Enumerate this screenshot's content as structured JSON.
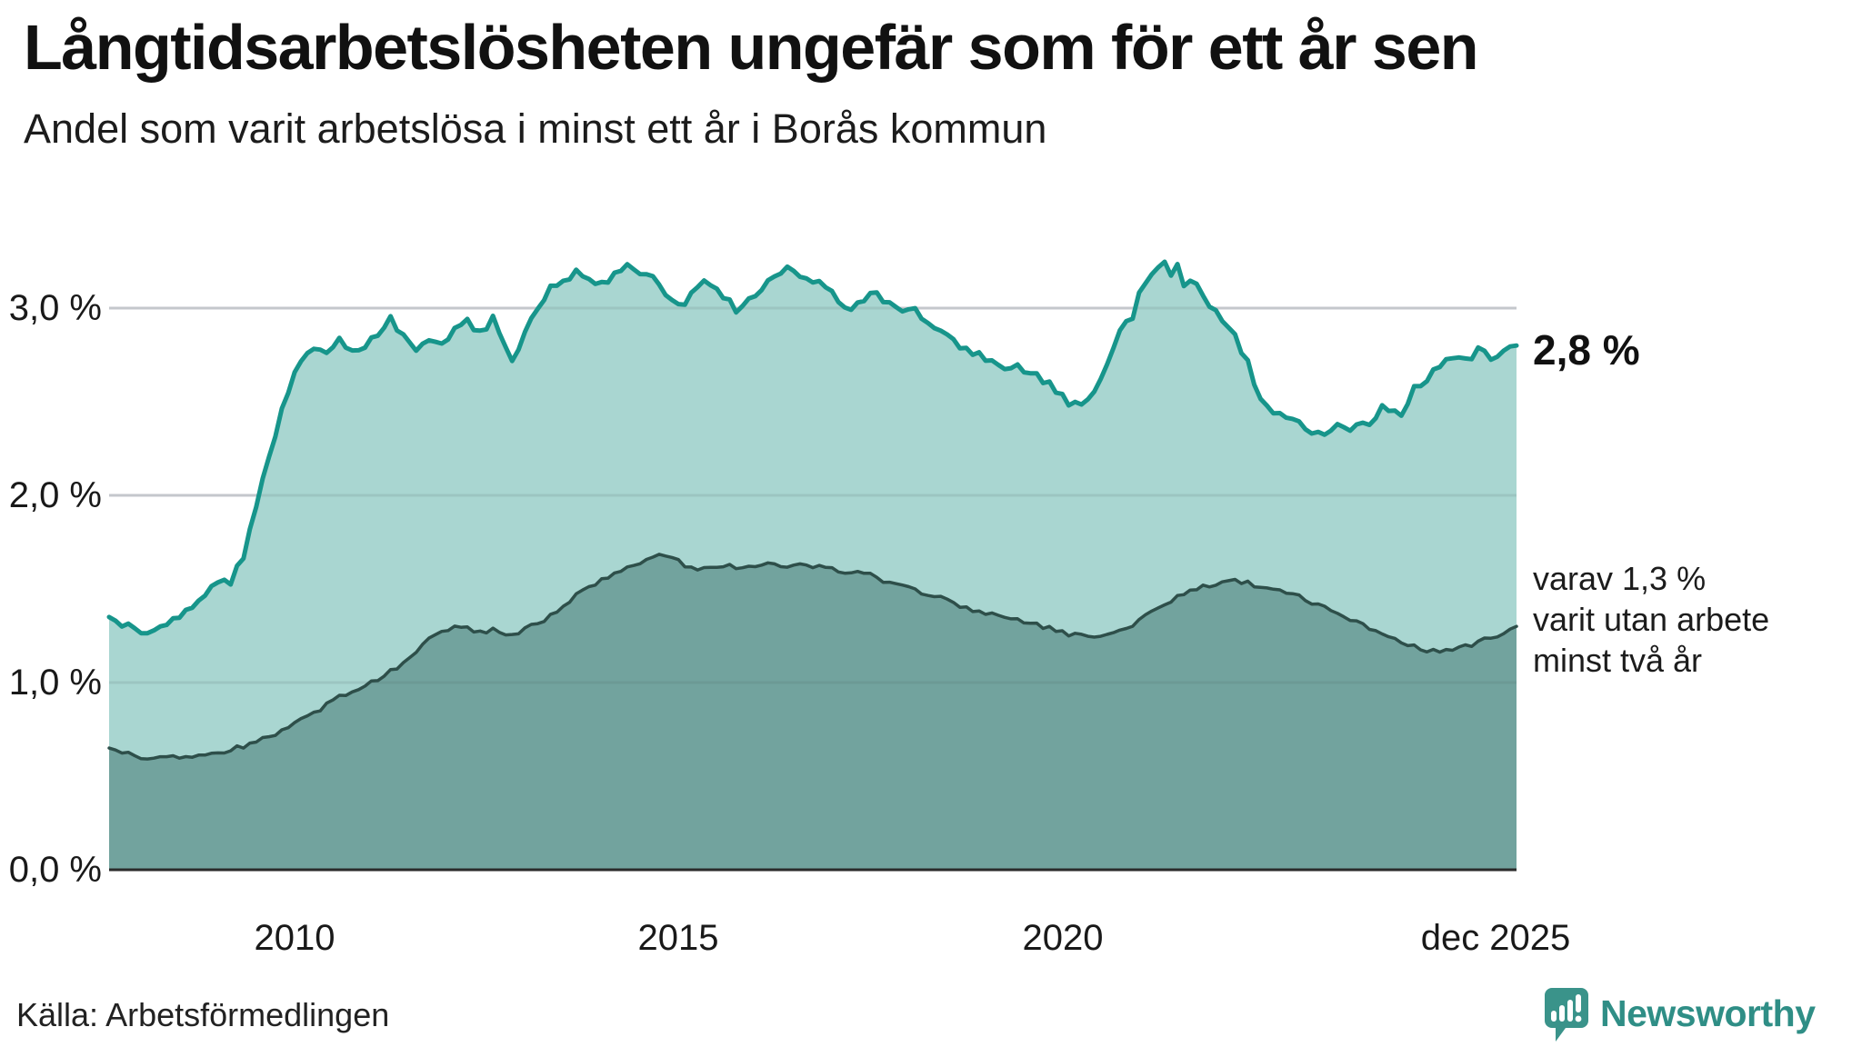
{
  "header": {
    "title": "Långtidsarbetslösheten ungefär som för ett år sen",
    "subtitle": "Andel som varit arbetslösa i minst ett år i Borås kommun"
  },
  "footer": {
    "source": "Källa: Arbetsförmedlingen",
    "brand": "Newsworthy"
  },
  "colors": {
    "primary_line": "#17958b",
    "primary_fill": "#a9d6d1",
    "secondary_line": "#2e4f4a",
    "secondary_fill": "#72a39e",
    "gridline": "#d8d8de",
    "axis": "#2b2b2b",
    "brand_teal": "#2f8e86"
  },
  "chart_data": {
    "type": "area",
    "title": "Långtidsarbetslösheten ungefär som för ett år sen",
    "subtitle": "Andel som varit arbetslösa i minst ett år i Borås kommun",
    "unit": "%",
    "grid": true,
    "x_range": [
      2007.58,
      2025.92
    ],
    "ylim": [
      0,
      3.45
    ],
    "y_ticks": [
      {
        "v": 0,
        "label": "0,0 %"
      },
      {
        "v": 1,
        "label": "1,0 %"
      },
      {
        "v": 2,
        "label": "2,0 %"
      },
      {
        "v": 3,
        "label": "3,0 %"
      }
    ],
    "x_ticks": [
      {
        "t": 2010.0,
        "label": "2010"
      },
      {
        "t": 2015.0,
        "label": "2015"
      },
      {
        "t": 2020.0,
        "label": "2020"
      },
      {
        "t": 2025.92,
        "label": "dec 2025"
      }
    ],
    "annotations": {
      "latest_value_label": "2,8 %",
      "secondary_lines": [
        "varav 1,3 %",
        "varit utan arbete",
        "minst två år"
      ]
    },
    "series": [
      {
        "name": "Andel arbetslösa minst ett år",
        "end_value": 2.8,
        "points": [
          [
            2007.58,
            1.35
          ],
          [
            2007.75,
            1.31
          ],
          [
            2007.92,
            1.29
          ],
          [
            2008.08,
            1.26
          ],
          [
            2008.25,
            1.3
          ],
          [
            2008.42,
            1.34
          ],
          [
            2008.58,
            1.38
          ],
          [
            2008.75,
            1.44
          ],
          [
            2008.92,
            1.52
          ],
          [
            2009.08,
            1.56
          ],
          [
            2009.17,
            1.53
          ],
          [
            2009.33,
            1.68
          ],
          [
            2009.5,
            1.95
          ],
          [
            2009.67,
            2.22
          ],
          [
            2009.83,
            2.45
          ],
          [
            2010.0,
            2.65
          ],
          [
            2010.17,
            2.76
          ],
          [
            2010.33,
            2.8
          ],
          [
            2010.42,
            2.74
          ],
          [
            2010.58,
            2.82
          ],
          [
            2010.75,
            2.78
          ],
          [
            2010.92,
            2.8
          ],
          [
            2011.08,
            2.87
          ],
          [
            2011.25,
            2.94
          ],
          [
            2011.42,
            2.86
          ],
          [
            2011.58,
            2.79
          ],
          [
            2011.75,
            2.85
          ],
          [
            2011.92,
            2.82
          ],
          [
            2012.08,
            2.89
          ],
          [
            2012.25,
            2.93
          ],
          [
            2012.42,
            2.87
          ],
          [
            2012.58,
            2.94
          ],
          [
            2012.75,
            2.8
          ],
          [
            2012.83,
            2.73
          ],
          [
            2013.0,
            2.86
          ],
          [
            2013.17,
            3.0
          ],
          [
            2013.33,
            3.1
          ],
          [
            2013.5,
            3.15
          ],
          [
            2013.67,
            3.2
          ],
          [
            2013.83,
            3.16
          ],
          [
            2014.0,
            3.13
          ],
          [
            2014.17,
            3.19
          ],
          [
            2014.33,
            3.23
          ],
          [
            2014.5,
            3.2
          ],
          [
            2014.67,
            3.17
          ],
          [
            2014.83,
            3.06
          ],
          [
            2015.0,
            3.0
          ],
          [
            2015.17,
            3.08
          ],
          [
            2015.33,
            3.14
          ],
          [
            2015.5,
            3.12
          ],
          [
            2015.75,
            2.98
          ],
          [
            2015.92,
            3.05
          ],
          [
            2016.08,
            3.1
          ],
          [
            2016.25,
            3.18
          ],
          [
            2016.42,
            3.23
          ],
          [
            2016.58,
            3.16
          ],
          [
            2016.75,
            3.13
          ],
          [
            2016.92,
            3.12
          ],
          [
            2017.08,
            3.05
          ],
          [
            2017.25,
            2.98
          ],
          [
            2017.42,
            3.05
          ],
          [
            2017.58,
            3.08
          ],
          [
            2017.75,
            3.02
          ],
          [
            2017.92,
            2.98
          ],
          [
            2018.08,
            3.0
          ],
          [
            2018.25,
            2.93
          ],
          [
            2018.42,
            2.86
          ],
          [
            2018.58,
            2.82
          ],
          [
            2018.75,
            2.78
          ],
          [
            2018.92,
            2.76
          ],
          [
            2019.08,
            2.7
          ],
          [
            2019.25,
            2.66
          ],
          [
            2019.42,
            2.68
          ],
          [
            2019.58,
            2.64
          ],
          [
            2019.75,
            2.62
          ],
          [
            2019.92,
            2.56
          ],
          [
            2020.08,
            2.5
          ],
          [
            2020.25,
            2.47
          ],
          [
            2020.42,
            2.55
          ],
          [
            2020.58,
            2.7
          ],
          [
            2020.75,
            2.88
          ],
          [
            2020.83,
            2.94
          ],
          [
            2020.92,
            2.96
          ],
          [
            2021.0,
            3.08
          ],
          [
            2021.17,
            3.18
          ],
          [
            2021.33,
            3.26
          ],
          [
            2021.42,
            3.19
          ],
          [
            2021.5,
            3.22
          ],
          [
            2021.58,
            3.12
          ],
          [
            2021.75,
            3.14
          ],
          [
            2021.83,
            3.05
          ],
          [
            2022.0,
            3.0
          ],
          [
            2022.08,
            2.92
          ],
          [
            2022.25,
            2.86
          ],
          [
            2022.42,
            2.7
          ],
          [
            2022.58,
            2.52
          ],
          [
            2022.75,
            2.44
          ],
          [
            2022.92,
            2.42
          ],
          [
            2023.08,
            2.38
          ],
          [
            2023.25,
            2.35
          ],
          [
            2023.42,
            2.31
          ],
          [
            2023.58,
            2.38
          ],
          [
            2023.75,
            2.36
          ],
          [
            2023.92,
            2.38
          ],
          [
            2024.08,
            2.41
          ],
          [
            2024.17,
            2.49
          ],
          [
            2024.25,
            2.46
          ],
          [
            2024.42,
            2.44
          ],
          [
            2024.58,
            2.56
          ],
          [
            2024.75,
            2.62
          ],
          [
            2024.92,
            2.68
          ],
          [
            2025.08,
            2.73
          ],
          [
            2025.25,
            2.71
          ],
          [
            2025.42,
            2.77
          ],
          [
            2025.58,
            2.73
          ],
          [
            2025.75,
            2.79
          ],
          [
            2025.92,
            2.8
          ]
        ]
      },
      {
        "name": "Andel arbetslösa minst två år",
        "end_value": 1.3,
        "points": [
          [
            2007.58,
            0.65
          ],
          [
            2007.83,
            0.62
          ],
          [
            2008.08,
            0.59
          ],
          [
            2008.33,
            0.61
          ],
          [
            2008.58,
            0.6
          ],
          [
            2008.83,
            0.62
          ],
          [
            2009.08,
            0.63
          ],
          [
            2009.33,
            0.66
          ],
          [
            2009.58,
            0.7
          ],
          [
            2009.83,
            0.74
          ],
          [
            2010.08,
            0.8
          ],
          [
            2010.33,
            0.86
          ],
          [
            2010.58,
            0.92
          ],
          [
            2010.83,
            0.97
          ],
          [
            2011.08,
            1.02
          ],
          [
            2011.25,
            1.06
          ],
          [
            2011.42,
            1.11
          ],
          [
            2011.58,
            1.17
          ],
          [
            2011.75,
            1.25
          ],
          [
            2011.92,
            1.28
          ],
          [
            2012.08,
            1.3
          ],
          [
            2012.25,
            1.29
          ],
          [
            2012.42,
            1.27
          ],
          [
            2012.58,
            1.28
          ],
          [
            2012.75,
            1.26
          ],
          [
            2012.92,
            1.27
          ],
          [
            2013.08,
            1.3
          ],
          [
            2013.25,
            1.33
          ],
          [
            2013.42,
            1.38
          ],
          [
            2013.58,
            1.44
          ],
          [
            2013.75,
            1.5
          ],
          [
            2013.92,
            1.53
          ],
          [
            2014.08,
            1.57
          ],
          [
            2014.25,
            1.6
          ],
          [
            2014.42,
            1.63
          ],
          [
            2014.58,
            1.66
          ],
          [
            2014.75,
            1.68
          ],
          [
            2014.92,
            1.66
          ],
          [
            2015.08,
            1.63
          ],
          [
            2015.25,
            1.6
          ],
          [
            2015.42,
            1.62
          ],
          [
            2015.58,
            1.63
          ],
          [
            2015.75,
            1.61
          ],
          [
            2015.92,
            1.62
          ],
          [
            2016.08,
            1.63
          ],
          [
            2016.25,
            1.64
          ],
          [
            2016.42,
            1.62
          ],
          [
            2016.58,
            1.63
          ],
          [
            2016.75,
            1.61
          ],
          [
            2016.92,
            1.62
          ],
          [
            2017.08,
            1.6
          ],
          [
            2017.25,
            1.58
          ],
          [
            2017.42,
            1.59
          ],
          [
            2017.58,
            1.56
          ],
          [
            2017.75,
            1.53
          ],
          [
            2017.92,
            1.52
          ],
          [
            2018.08,
            1.5
          ],
          [
            2018.25,
            1.47
          ],
          [
            2018.42,
            1.45
          ],
          [
            2018.58,
            1.42
          ],
          [
            2018.75,
            1.4
          ],
          [
            2018.92,
            1.38
          ],
          [
            2019.08,
            1.36
          ],
          [
            2019.25,
            1.34
          ],
          [
            2019.42,
            1.33
          ],
          [
            2019.58,
            1.31
          ],
          [
            2019.75,
            1.3
          ],
          [
            2019.92,
            1.28
          ],
          [
            2020.08,
            1.26
          ],
          [
            2020.25,
            1.25
          ],
          [
            2020.42,
            1.24
          ],
          [
            2020.58,
            1.26
          ],
          [
            2020.75,
            1.28
          ],
          [
            2020.92,
            1.31
          ],
          [
            2021.08,
            1.36
          ],
          [
            2021.25,
            1.4
          ],
          [
            2021.42,
            1.44
          ],
          [
            2021.58,
            1.47
          ],
          [
            2021.75,
            1.5
          ],
          [
            2021.92,
            1.52
          ],
          [
            2022.08,
            1.53
          ],
          [
            2022.25,
            1.55
          ],
          [
            2022.42,
            1.53
          ],
          [
            2022.58,
            1.51
          ],
          [
            2022.75,
            1.5
          ],
          [
            2022.92,
            1.48
          ],
          [
            2023.08,
            1.46
          ],
          [
            2023.25,
            1.43
          ],
          [
            2023.42,
            1.4
          ],
          [
            2023.58,
            1.37
          ],
          [
            2023.75,
            1.34
          ],
          [
            2023.92,
            1.31
          ],
          [
            2024.08,
            1.28
          ],
          [
            2024.25,
            1.25
          ],
          [
            2024.42,
            1.22
          ],
          [
            2024.58,
            1.19
          ],
          [
            2024.75,
            1.17
          ],
          [
            2024.92,
            1.16
          ],
          [
            2025.08,
            1.17
          ],
          [
            2025.25,
            1.19
          ],
          [
            2025.42,
            1.21
          ],
          [
            2025.58,
            1.24
          ],
          [
            2025.75,
            1.27
          ],
          [
            2025.92,
            1.3
          ]
        ]
      }
    ]
  }
}
